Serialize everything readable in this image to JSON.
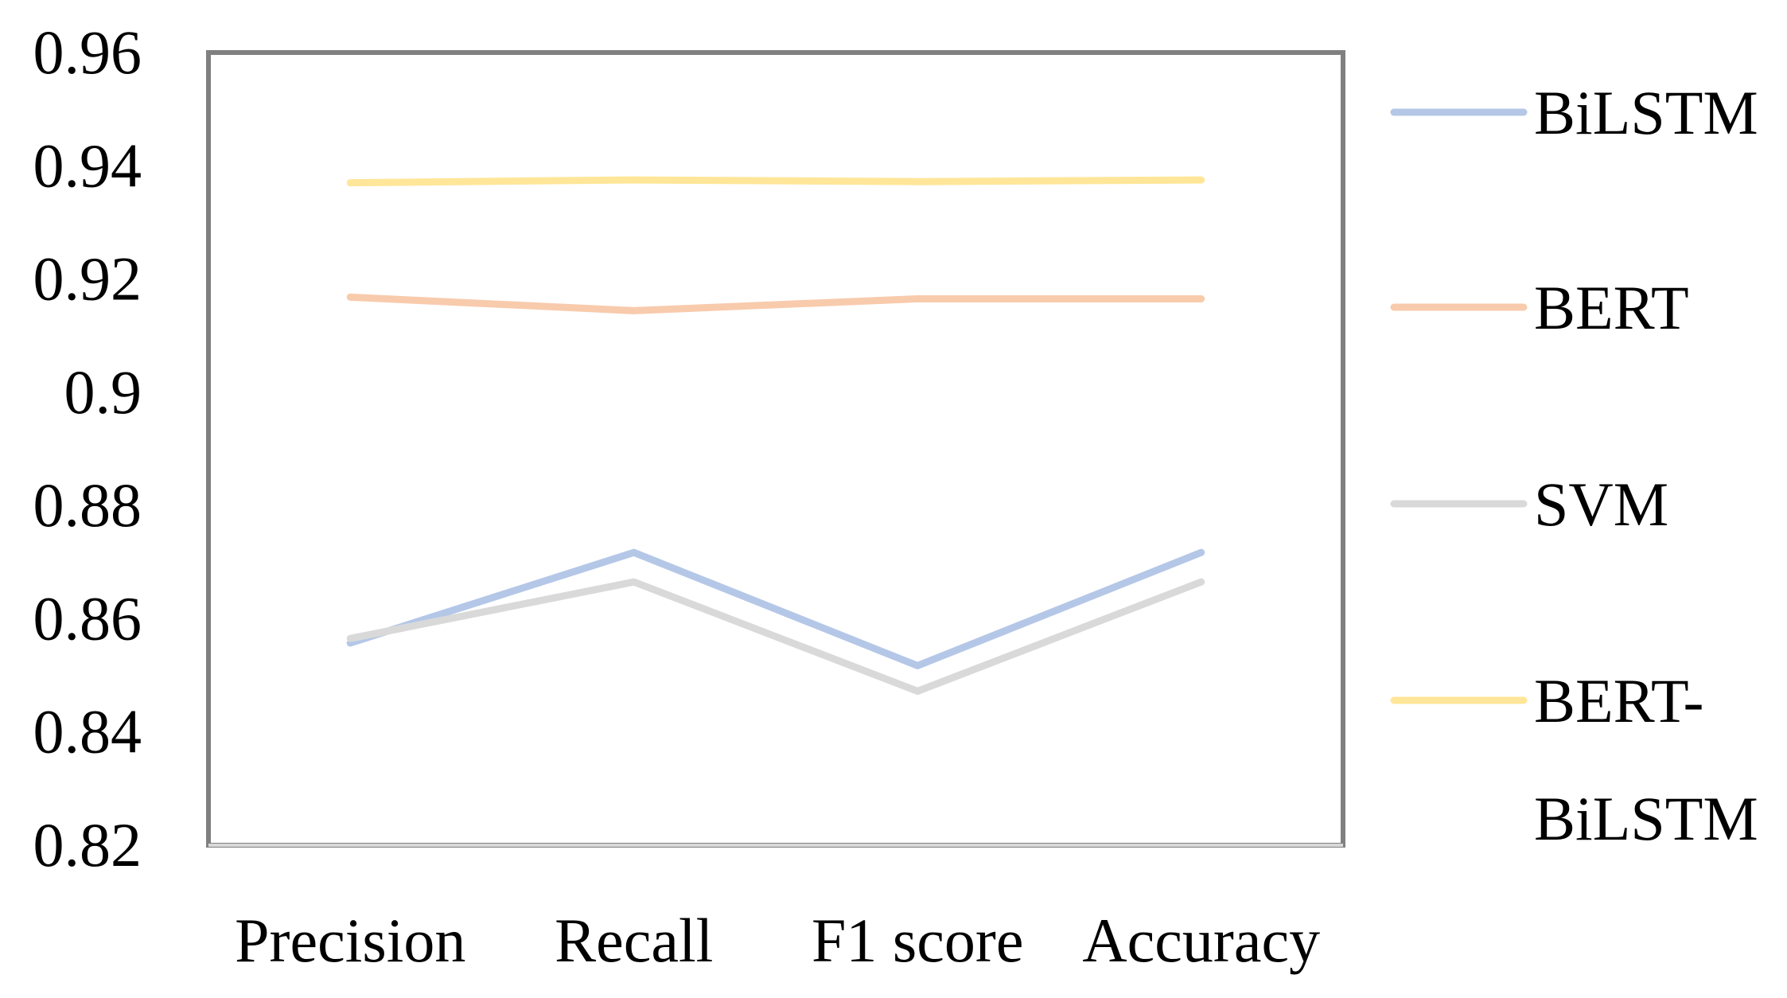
{
  "chart_data": {
    "type": "line",
    "title": "",
    "xlabel": "",
    "ylabel": "",
    "categories": [
      "Precision",
      "Recall",
      "F1 score",
      "Accuracy"
    ],
    "ylim": [
      0.82,
      0.96
    ],
    "yticks": [
      "0.96",
      "0.94",
      "0.92",
      "0.9",
      "0.88",
      "0.86",
      "0.84",
      "0.82"
    ],
    "legend_position": "right",
    "grid": false,
    "series": [
      {
        "name": "BiLSTM",
        "color": "#b4c7e7",
        "values": [
          0.8557,
          0.8717,
          0.8517,
          0.8717
        ]
      },
      {
        "name": "BERT",
        "color": "#f8cbad",
        "values": [
          0.9168,
          0.9144,
          0.9165,
          0.9165
        ]
      },
      {
        "name": "SVM",
        "color": "#d9d9d9",
        "values": [
          0.8565,
          0.8665,
          0.8472,
          0.8665
        ]
      },
      {
        "name": "BERT-BiLSTM",
        "name_lines": [
          "BERT-",
          "BiLSTM"
        ],
        "color": "#ffe699",
        "values": [
          0.937,
          0.9375,
          0.9372,
          0.9375
        ]
      }
    ]
  }
}
